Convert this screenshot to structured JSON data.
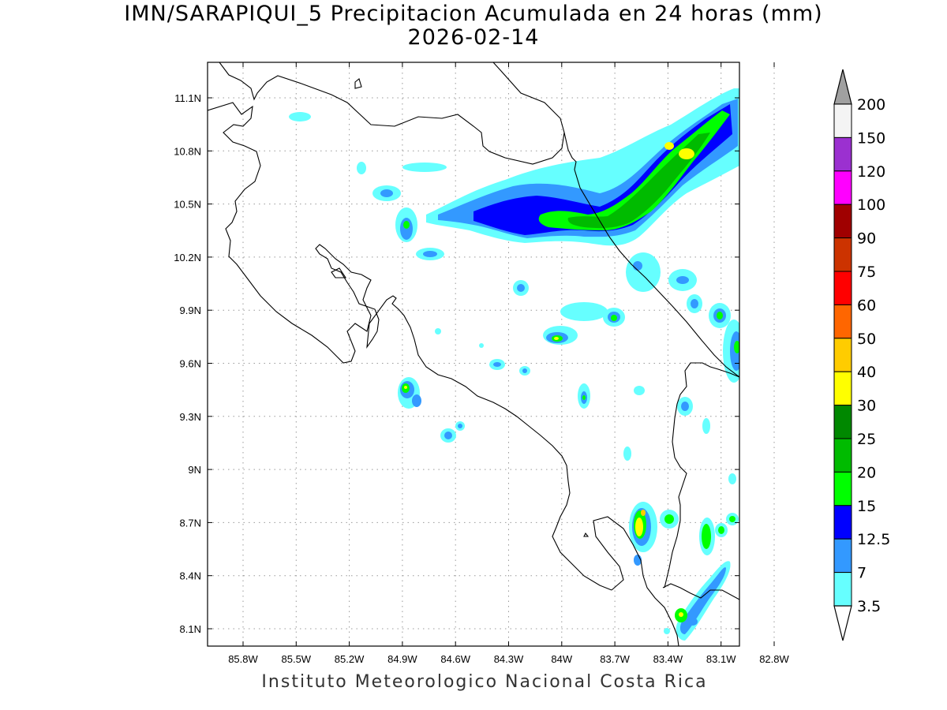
{
  "title_line1": "IMN/SARAPIQUI_5 Precipitacion Acumulada en 24 horas (mm)",
  "title_line2": "2026-02-14",
  "footer": "Instituto Meteorologico Nacional Costa Rica",
  "map": {
    "lon_range": [
      -86.09,
      -81.75
    ],
    "lat_range": [
      8.0,
      11.3
    ],
    "lon_ticks": [
      "85.8W",
      "85.5W",
      "85.2W",
      "84.9W",
      "84.6W",
      "84.3W",
      "84W",
      "83.7W",
      "83.4W",
      "83.1W",
      "82.8W"
    ],
    "lat_ticks": [
      "11.1N",
      "10.8N",
      "10.5N",
      "10.2N",
      "9.9N",
      "9.6N",
      "9.3N",
      "9N",
      "8.7N",
      "8.4N",
      "8.1N"
    ],
    "grid": true,
    "grid_style": "dotted"
  },
  "colorbar": {
    "placement": "right",
    "labels": [
      "200",
      "150",
      "120",
      "100",
      "90",
      "75",
      "60",
      "50",
      "40",
      "30",
      "25",
      "20",
      "15",
      "12.5",
      "7",
      "3.5"
    ],
    "colors": [
      "#ffffff",
      "#f4f4f4",
      "#9b30d0",
      "#ff00ff",
      "#a00000",
      "#cc3300",
      "#ff0000",
      "#ff6600",
      "#ffcc00",
      "#ffff00",
      "#008800",
      "#00bb00",
      "#00ff00",
      "#0000ff",
      "#3399ff",
      "#66ffff"
    ],
    "top_arrow_color": "#a0a0a0",
    "bottom_arrow_color": "#ffffff"
  }
}
